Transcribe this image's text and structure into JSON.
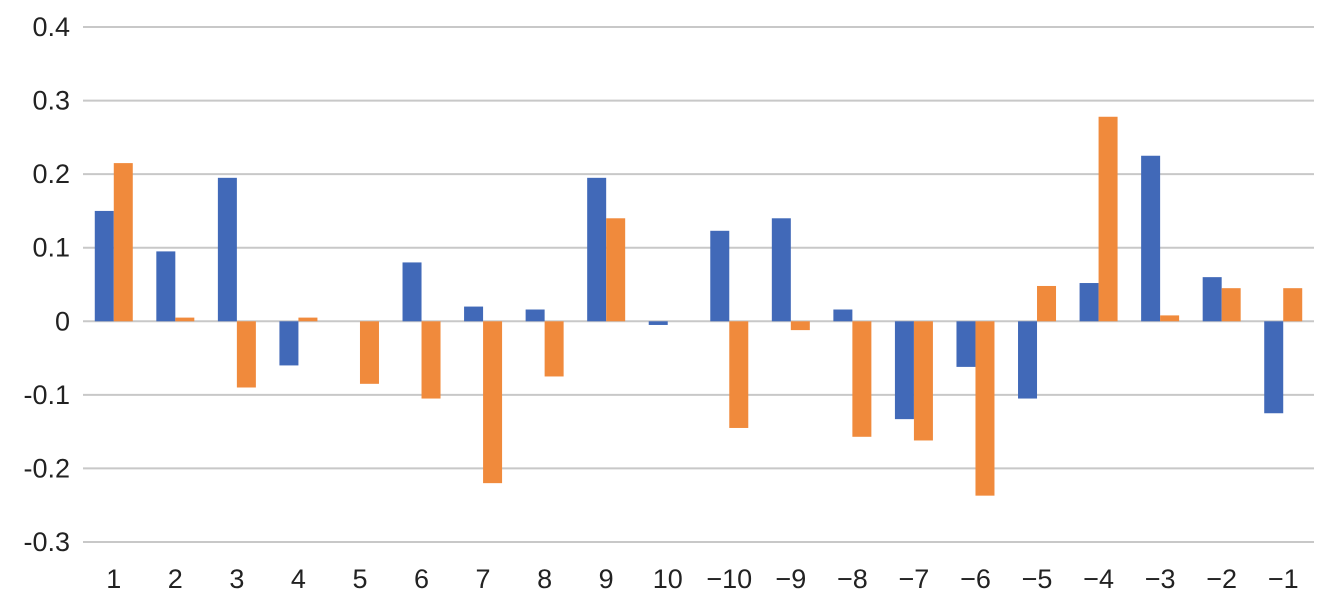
{
  "chart_data": {
    "type": "bar",
    "title": "",
    "xlabel": "",
    "ylabel": "",
    "categories": [
      "1",
      "2",
      "3",
      "4",
      "5",
      "6",
      "7",
      "8",
      "9",
      "10",
      "−10",
      "−9",
      "−8",
      "−7",
      "−6",
      "−5",
      "−4",
      "−3",
      "−2",
      "−1"
    ],
    "series": [
      {
        "color": "#4169b8",
        "values": [
          0.15,
          0.095,
          0.195,
          -0.06,
          0.0,
          0.08,
          0.02,
          0.016,
          0.195,
          -0.005,
          0.123,
          0.14,
          0.016,
          -0.133,
          -0.062,
          -0.105,
          0.052,
          0.225,
          0.06,
          -0.125
        ]
      },
      {
        "color": "#f08a3c",
        "values": [
          0.215,
          0.005,
          -0.09,
          0.005,
          -0.085,
          -0.105,
          -0.22,
          -0.075,
          0.14,
          0.0,
          -0.145,
          -0.012,
          -0.157,
          -0.162,
          -0.237,
          0.048,
          0.278,
          0.008,
          0.045,
          0.045
        ]
      }
    ],
    "ylim": [
      -0.3,
      0.4
    ],
    "yticks": [
      0.4,
      0.3,
      0.2,
      0.1,
      0,
      -0.1,
      -0.2,
      -0.3
    ],
    "ytick_labels": [
      "0.4",
      "0.3",
      "0.2",
      "0.1",
      "0",
      "-0.1",
      "-0.2",
      "-0.3"
    ],
    "grid": true,
    "legend": "none"
  }
}
